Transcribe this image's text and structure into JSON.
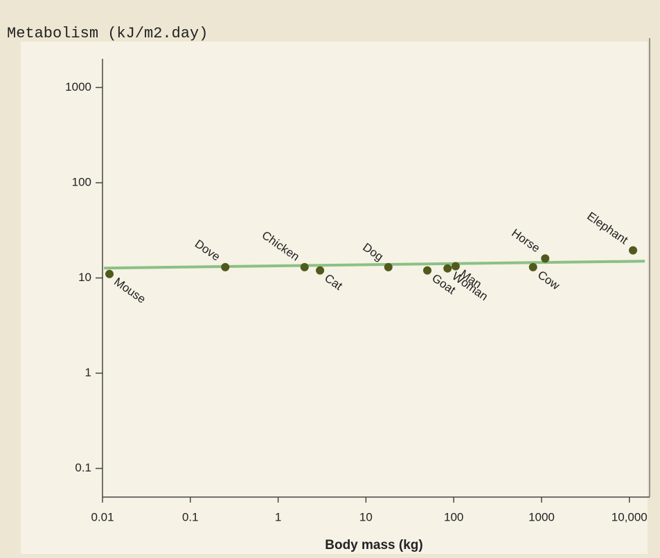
{
  "chart_data": {
    "type": "scatter",
    "title": "Metabolism (kJ/m2.day)",
    "x_label": "Body mass (kg)",
    "x_log": true,
    "y_log": true,
    "xlim": [
      0.01,
      17000
    ],
    "ylim": [
      0.05,
      2000
    ],
    "xticks": [
      0.01,
      0.1,
      1,
      10,
      100,
      1000,
      {
        "value": 10000,
        "label": "10,000"
      }
    ],
    "yticks": [
      0.1,
      1,
      10,
      100,
      1000
    ],
    "color": "#4f5a1c",
    "labels": [
      "Mouse",
      "Dove",
      "Chicken",
      "Cat",
      "Dog",
      "Goat",
      "Woman",
      "Man",
      "Cow",
      "Horse",
      "Elephant"
    ],
    "x": [
      0.012,
      0.25,
      2,
      3,
      18,
      50,
      85,
      105,
      800,
      1100,
      11000
    ],
    "values": [
      11,
      13,
      13,
      12,
      13,
      12,
      12.6,
      13.3,
      13,
      16,
      19.5
    ],
    "trend": {
      "color": "#8cc084",
      "x": [
        0.0104,
        15000
      ],
      "values": [
        12.7,
        15
      ]
    }
  }
}
